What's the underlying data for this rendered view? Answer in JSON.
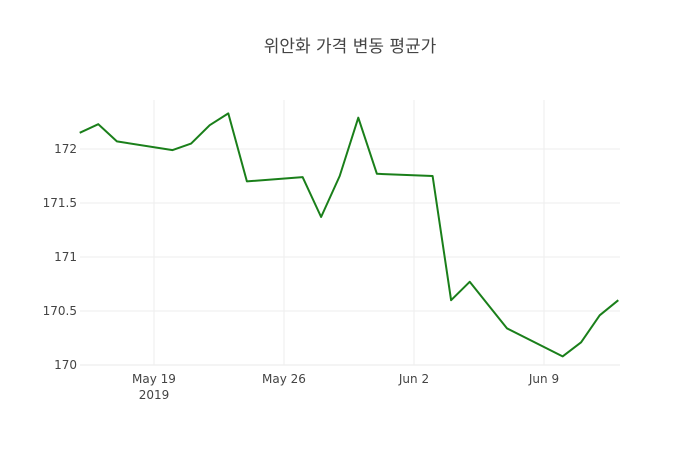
{
  "chart_data": {
    "type": "line",
    "title": "위안화 가격 변동 평균가",
    "xlabel": "",
    "ylabel": "",
    "x": [
      "2019-05-15",
      "2019-05-16",
      "2019-05-17",
      "2019-05-20",
      "2019-05-21",
      "2019-05-22",
      "2019-05-23",
      "2019-05-24",
      "2019-05-27",
      "2019-05-28",
      "2019-05-29",
      "2019-05-30",
      "2019-05-31",
      "2019-06-03",
      "2019-06-04",
      "2019-06-05",
      "2019-06-07",
      "2019-06-10",
      "2019-06-11",
      "2019-06-12",
      "2019-06-13"
    ],
    "series": [
      {
        "name": "평균가",
        "color": "#1a7f1a",
        "values": [
          172.15,
          172.23,
          172.07,
          171.99,
          172.05,
          172.22,
          172.33,
          171.7,
          171.74,
          171.37,
          171.75,
          172.29,
          171.77,
          171.75,
          170.6,
          170.77,
          170.34,
          170.08,
          170.21,
          170.46,
          170.6
        ]
      }
    ],
    "ylim": [
      169.97,
      172.45
    ],
    "yticks": [
      170,
      170.5,
      171,
      171.5,
      172
    ],
    "ytick_labels": [
      "170",
      "170.5",
      "171",
      "171.5",
      "172"
    ],
    "xticks": [
      "2019-05-19",
      "2019-05-26",
      "2019-06-02",
      "2019-06-09"
    ],
    "xtick_labels": [
      "May 19",
      "May 26",
      "Jun 2",
      "Jun 9"
    ],
    "xtick_sublabel": "2019",
    "grid": true,
    "legend": false
  }
}
